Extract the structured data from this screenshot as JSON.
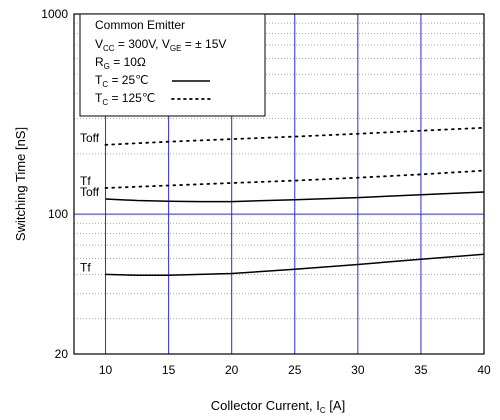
{
  "chart_data": {
    "type": "line",
    "x_scale": "linear",
    "y_scale": "log",
    "xlim": [
      7.5,
      40
    ],
    "ylim": [
      20,
      1000
    ],
    "x_ticks": [
      10,
      15,
      20,
      25,
      30,
      35,
      40
    ],
    "y_ticks": [
      20,
      100,
      1000
    ],
    "y_tick_labels": [
      "20",
      "100",
      "1000"
    ],
    "x_tick_labels": [
      "10",
      "15",
      "20",
      "25",
      "30",
      "35",
      "40"
    ],
    "grid": true,
    "xlabel_main": "Collector Current, I",
    "xlabel_sub": "C",
    "xlabel_unit": " [A]",
    "ylabel": "Switching Time [nS]",
    "legend": {
      "placement": "top-left",
      "title": "Common Emitter",
      "line1": {
        "v1": "V",
        "s1": "CC",
        "t1": " = 300V, V",
        "s2": "GE",
        "t2": " = ± 15V"
      },
      "line2": {
        "v": "R",
        "s": "G",
        "t": " = 10Ω"
      },
      "entries": [
        {
          "v": "T",
          "s": "C",
          "t": " =   25℃",
          "style": "solid"
        },
        {
          "v": "T",
          "s": "C",
          "t": " = 125℃",
          "style": "dotted"
        }
      ]
    },
    "series": [
      {
        "label": "Toff",
        "style": "dotted",
        "x": [
          10,
          15,
          20,
          25,
          30,
          35,
          40
        ],
        "values": [
          222,
          230,
          237,
          244,
          252,
          261,
          270
        ]
      },
      {
        "label": "Tf",
        "style": "dotted",
        "x": [
          10,
          15,
          20,
          25,
          30,
          35,
          40
        ],
        "values": [
          135,
          139,
          143,
          147,
          152,
          158,
          165
        ]
      },
      {
        "label": "Toff",
        "style": "solid",
        "x": [
          10,
          12.5,
          15,
          17.5,
          20,
          25,
          30,
          35,
          40
        ],
        "values": [
          119,
          117,
          116,
          115.5,
          115.5,
          118,
          121,
          125,
          129
        ]
      },
      {
        "label": "Tf",
        "style": "solid",
        "x": [
          10,
          12.5,
          15,
          17.5,
          20,
          25,
          30,
          35,
          40
        ],
        "values": [
          50,
          49.5,
          49.5,
          50,
          50.5,
          53,
          56,
          59.5,
          63
        ]
      }
    ]
  }
}
